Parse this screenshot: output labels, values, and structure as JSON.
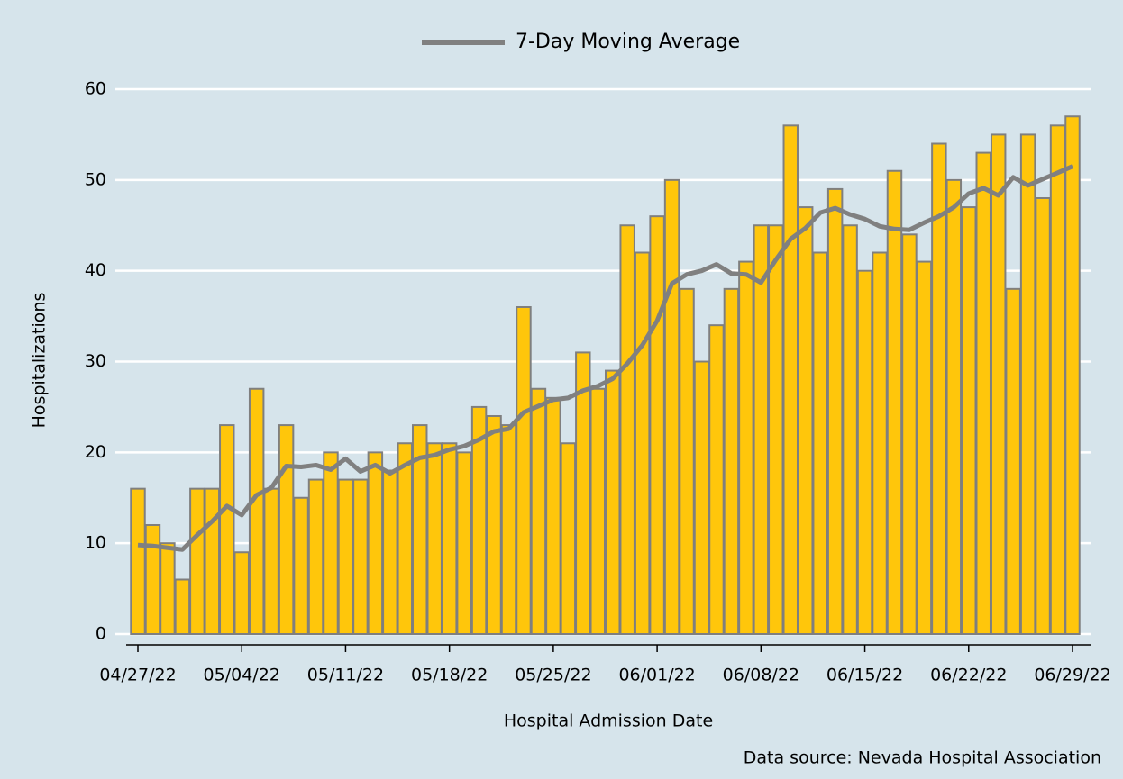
{
  "chart_data": {
    "type": "bar",
    "x_label": "Hospital Admission Date",
    "y_label": "Hospitalizations",
    "source": "Data source: Nevada Hospital Association",
    "categories": [
      "04/27/22",
      null,
      null,
      null,
      null,
      null,
      null,
      "05/04/22",
      null,
      null,
      null,
      null,
      null,
      null,
      "05/11/22",
      null,
      null,
      null,
      null,
      null,
      null,
      "05/18/22",
      null,
      null,
      null,
      null,
      null,
      null,
      "05/25/22",
      null,
      null,
      null,
      null,
      null,
      null,
      "06/01/22",
      null,
      null,
      null,
      null,
      null,
      null,
      "06/08/22",
      null,
      null,
      null,
      null,
      null,
      null,
      "06/15/22",
      null,
      null,
      null,
      null,
      null,
      null,
      "06/22/22",
      null,
      null,
      null,
      null,
      null,
      null,
      "06/29/22"
    ],
    "series": [
      {
        "type": "bar",
        "color": "#ffc60b",
        "values": [
          16,
          12,
          10,
          6,
          16,
          16,
          23,
          9,
          27,
          16,
          23,
          15,
          17,
          20,
          17,
          17,
          20,
          18,
          21,
          23,
          21,
          21,
          20,
          25,
          24,
          23,
          36,
          27,
          26,
          21,
          31,
          27,
          29,
          45,
          42,
          46,
          50,
          38,
          30,
          34,
          38,
          41,
          45,
          45,
          56,
          47,
          42,
          49,
          45,
          40,
          42,
          51,
          44,
          41,
          54,
          50,
          47,
          53,
          55,
          38,
          55,
          48,
          56,
          57
        ]
      },
      {
        "type": "line",
        "name": "7-Day Moving Average",
        "color": "#808080",
        "values": [
          9.8,
          9.7,
          9.5,
          9.3,
          10.9,
          12.4,
          14.1,
          13.1,
          15.3,
          16.1,
          18.5,
          18.4,
          18.6,
          18.1,
          19.3,
          17.9,
          18.6,
          17.7,
          18.6,
          19.4,
          19.7,
          20.3,
          20.7,
          21.4,
          22.3,
          22.6,
          24.4,
          25.1,
          25.8,
          26.0,
          26.8,
          27.3,
          28.1,
          29.8,
          31.8,
          34.5,
          38.6,
          39.6,
          40.0,
          40.7,
          39.7,
          39.6,
          38.7,
          41.2,
          43.5,
          44.7,
          46.4,
          46.9,
          46.2,
          45.7,
          44.9,
          44.6,
          44.5,
          45.3,
          46.0,
          47.0,
          48.5,
          49.1,
          48.3,
          50.3,
          49.4,
          50.1,
          50.8,
          51.5
        ]
      }
    ],
    "ylim": [
      0,
      60
    ],
    "yticks": [
      0,
      10,
      20,
      30,
      40,
      50,
      60
    ],
    "grid": true,
    "legend": "top"
  }
}
